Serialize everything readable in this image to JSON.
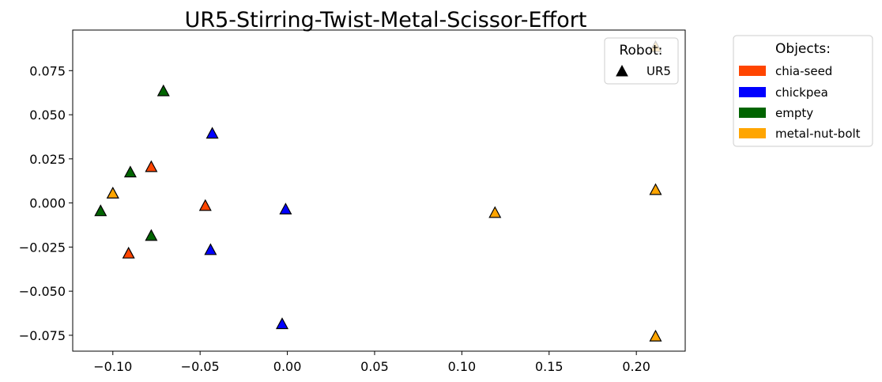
{
  "chart_data": {
    "type": "scatter",
    "title": "UR5-Stirring-Twist-Metal-Scissor-Effort",
    "xlabel": "",
    "ylabel": "",
    "xlim": [
      -0.123,
      0.228
    ],
    "ylim": [
      -0.084,
      0.098
    ],
    "x_ticks": [
      -0.1,
      -0.05,
      0.0,
      0.05,
      0.1,
      0.15,
      0.2
    ],
    "x_tick_labels": [
      "−0.10",
      "−0.05",
      "0.00",
      "0.05",
      "0.10",
      "0.15",
      "0.20"
    ],
    "y_ticks": [
      0.075,
      0.05,
      0.025,
      0.0,
      -0.025,
      -0.05,
      -0.075
    ],
    "y_tick_labels": [
      "0.075",
      "0.050",
      "0.025",
      "0.000",
      "−0.025",
      "−0.050",
      "−0.075"
    ],
    "grid": false,
    "marker": "triangle",
    "series": [
      {
        "name": "chia-seed",
        "color": "#ff4500",
        "points": [
          [
            -0.078,
            0.02
          ],
          [
            -0.047,
            -0.002
          ],
          [
            -0.091,
            -0.029
          ]
        ]
      },
      {
        "name": "chickpea",
        "color": "#0000ff",
        "points": [
          [
            -0.043,
            0.039
          ],
          [
            -0.001,
            -0.004
          ],
          [
            -0.044,
            -0.027
          ],
          [
            -0.003,
            -0.069
          ]
        ]
      },
      {
        "name": "empty",
        "color": "#006400",
        "points": [
          [
            -0.071,
            0.063
          ],
          [
            -0.09,
            0.017
          ],
          [
            -0.107,
            -0.005
          ],
          [
            -0.078,
            -0.019
          ],
          [
            -0.1,
            0.005
          ]
        ]
      },
      {
        "name": "metal-nut-bolt",
        "color": "#ffa500",
        "points": [
          [
            -0.1,
            0.005
          ],
          [
            0.119,
            -0.006
          ],
          [
            0.211,
            0.007
          ],
          [
            0.211,
            -0.076
          ],
          [
            0.211,
            0.088
          ]
        ]
      }
    ],
    "legend_robot": {
      "title": "Robot:",
      "placement": "top-right",
      "entries": [
        {
          "label": "UR5",
          "marker": "triangle",
          "color": "#000000"
        }
      ]
    },
    "legend_objects": {
      "title": "Objects:",
      "placement": "outside-right",
      "entries": [
        {
          "label": "chia-seed",
          "color": "#ff4500"
        },
        {
          "label": "chickpea",
          "color": "#0000ff"
        },
        {
          "label": "empty",
          "color": "#006400"
        },
        {
          "label": "metal-nut-bolt",
          "color": "#ffa500"
        }
      ]
    }
  }
}
